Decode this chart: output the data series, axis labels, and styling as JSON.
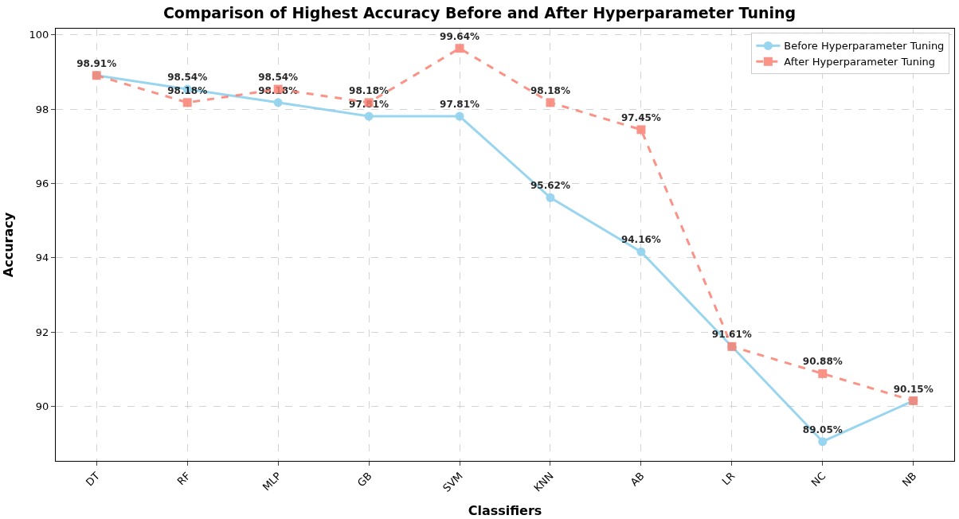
{
  "chart_data": {
    "type": "line",
    "title": "Comparison of Highest Accuracy Before and After Hyperparameter Tuning",
    "xlabel": "Classifiers",
    "ylabel": "Accuracy",
    "categories": [
      "DT",
      "RF",
      "MLP",
      "GB",
      "SVM",
      "KNN",
      "AB",
      "LR",
      "NC",
      "NB"
    ],
    "series": [
      {
        "name": "Before Hyperparameter Tuning",
        "color": "#87ceeb",
        "marker": "circle",
        "line_style": "solid",
        "values": [
          98.91,
          98.54,
          98.18,
          97.81,
          97.81,
          95.62,
          94.16,
          91.61,
          89.05,
          90.15
        ],
        "value_labels": [
          "98.91%",
          "98.54%",
          "98.18%",
          "97.81%",
          "97.81%",
          "95.62%",
          "94.16%",
          "91.61%",
          "89.05%",
          "90.15%"
        ]
      },
      {
        "name": "After Hyperparameter Tuning",
        "color": "#fa8072",
        "marker": "square",
        "line_style": "dashed",
        "values": [
          98.91,
          98.18,
          98.54,
          98.18,
          99.64,
          98.18,
          97.45,
          91.61,
          90.88,
          90.15
        ],
        "value_labels": [
          null,
          "98.18%",
          "98.54%",
          "98.18%",
          "99.64%",
          "98.18%",
          "97.45%",
          null,
          "90.88%",
          null
        ]
      }
    ],
    "ylim": [
      88.53,
      100.17
    ],
    "yticks": [
      90,
      92,
      94,
      96,
      98,
      100
    ],
    "grid": true,
    "legend": "top right"
  }
}
